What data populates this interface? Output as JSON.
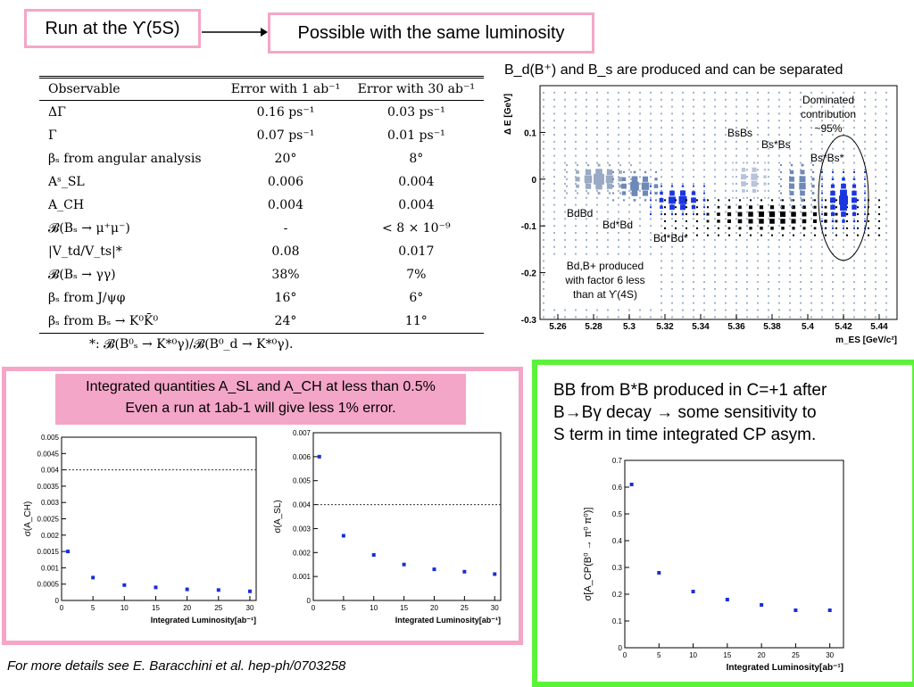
{
  "header": {
    "title": "Run at the ϒ(5S)",
    "possible": "Possible with the same luminosity"
  },
  "table": {
    "columns": [
      "Observable",
      "Error with 1 ab⁻¹",
      "Error with 30 ab⁻¹"
    ],
    "rows": [
      {
        "obs": "ΔΓ",
        "e1": "0.16 ps⁻¹",
        "e30": "0.03 ps⁻¹"
      },
      {
        "obs": "Γ",
        "e1": "0.07 ps⁻¹",
        "e30": "0.01 ps⁻¹"
      },
      {
        "obs": "βₛ from angular analysis",
        "e1": "20°",
        "e30": "8°"
      },
      {
        "obs": "Aˢ_SL",
        "e1": "0.006",
        "e30": "0.004"
      },
      {
        "obs": "A_CH",
        "e1": "0.004",
        "e30": "0.004"
      },
      {
        "obs": "𝓑(Bₛ → μ⁺μ⁻)",
        "e1": "-",
        "e30": "< 8 × 10⁻⁹"
      },
      {
        "obs": "|V_td/V_ts|*",
        "e1": "0.08",
        "e30": "0.017"
      },
      {
        "obs": "𝓑(Bₛ → γγ)",
        "e1": "38%",
        "e30": "7%"
      },
      {
        "obs": "βₛ from J/ψφ",
        "e1": "16°",
        "e30": "6°"
      },
      {
        "obs": "βₛ from Bₛ → K⁰K̄⁰",
        "e1": "24°",
        "e30": "11°"
      }
    ],
    "footnote": "*: 𝓑(B⁰ₛ → K*⁰γ)/𝓑(B⁰_d → K*⁰γ)."
  },
  "separation": {
    "title": "B_d(B⁺) and B_s are produced and can be separated",
    "chart_data": {
      "type": "scatter",
      "xlabel": "m_ES [GeV/c²]",
      "ylabel": "Δ E [GeV]",
      "xlim": [
        5.25,
        5.45
      ],
      "ylim": [
        -0.3,
        0.2
      ],
      "xticks": [
        "5.26",
        "5.28",
        "5.3",
        "5.32",
        "5.34",
        "5.36",
        "5.38",
        "5.4",
        "5.42",
        "5.44"
      ],
      "yticks": [
        "-0.3",
        "-0.2",
        "-0.1",
        "0",
        "0.1"
      ],
      "annotations": {
        "bdbd": "BdBd",
        "bdstarbd": "Bd*Bd",
        "bdstarbdstar": "Bd*Bd*",
        "bsbs": "BsBs",
        "bsstarbs": "Bs*Bs",
        "bsstarbsstar": "Bs*Bs*",
        "dominated": [
          "Dominated",
          "contribution",
          "~95%"
        ],
        "produced": [
          "Bd,B+ produced",
          "with factor 6 less",
          "than at ϒ(4S)"
        ]
      }
    }
  },
  "integrated": {
    "banner_line1": "Integrated quantities A_SL and A_CH at less than 0.5%",
    "banner_line2": "Even a run at 1ab-1 will give less 1% error."
  },
  "bottom_chart_data": [
    {
      "type": "scatter",
      "ylabel": "σ(A_CH)",
      "xlabel": "Integrated Luminosity[ab⁻¹]",
      "xlim": [
        0,
        31
      ],
      "ylim": [
        0,
        0.005
      ],
      "xticks": [
        0,
        5,
        10,
        15,
        20,
        25,
        30
      ],
      "yticks": [
        "0",
        "0.0005",
        "0.001",
        "0.0015",
        "0.002",
        "0.0025",
        "0.003",
        "0.0035",
        "0.004",
        "0.0045",
        "0.005"
      ],
      "x": [
        1,
        5,
        10,
        15,
        20,
        25,
        30
      ],
      "y": [
        0.0015,
        0.0007,
        0.00047,
        0.0004,
        0.00034,
        0.00032,
        0.00028
      ],
      "reference_line": 0.004,
      "color": "#1a2ed8"
    },
    {
      "type": "scatter",
      "ylabel": "σ(A_SL)",
      "xlabel": "Integrated Luminosity[ab⁻¹]",
      "xlim": [
        0,
        31
      ],
      "ylim": [
        0,
        0.007
      ],
      "xticks": [
        0,
        5,
        10,
        15,
        20,
        25,
        30
      ],
      "yticks": [
        "0",
        "0.001",
        "0.002",
        "0.003",
        "0.004",
        "0.005",
        "0.006",
        "0.007"
      ],
      "x": [
        1,
        5,
        10,
        15,
        20,
        25,
        30
      ],
      "y": [
        0.006,
        0.0027,
        0.0019,
        0.0015,
        0.0013,
        0.0012,
        0.0011
      ],
      "reference_line": 0.004,
      "color": "#1a2ed8"
    },
    {
      "type": "scatter",
      "ylabel": "σ[A_CP(B⁰ → π⁰ π⁰)]",
      "xlabel": "Integrated Luminosity[ab⁻¹]",
      "xlim": [
        0,
        32
      ],
      "ylim": [
        0,
        0.7
      ],
      "xticks": [
        0,
        5,
        10,
        15,
        20,
        25,
        30
      ],
      "yticks": [
        "0",
        "0.1",
        "0.2",
        "0.3",
        "0.4",
        "0.5",
        "0.6",
        "0.7"
      ],
      "x": [
        1,
        5,
        10,
        15,
        20,
        25,
        30
      ],
      "y": [
        0.61,
        0.28,
        0.21,
        0.18,
        0.16,
        0.14,
        0.14
      ],
      "color": "#1a2ed8"
    }
  ],
  "green": {
    "lines": [
      "BB from B*B produced in C=+1 after",
      "B→Bγ decay → some sensitivity to",
      "S term in time integrated CP asym."
    ]
  },
  "details": "For more details see E. Baracchini et al. hep-ph/0703258"
}
